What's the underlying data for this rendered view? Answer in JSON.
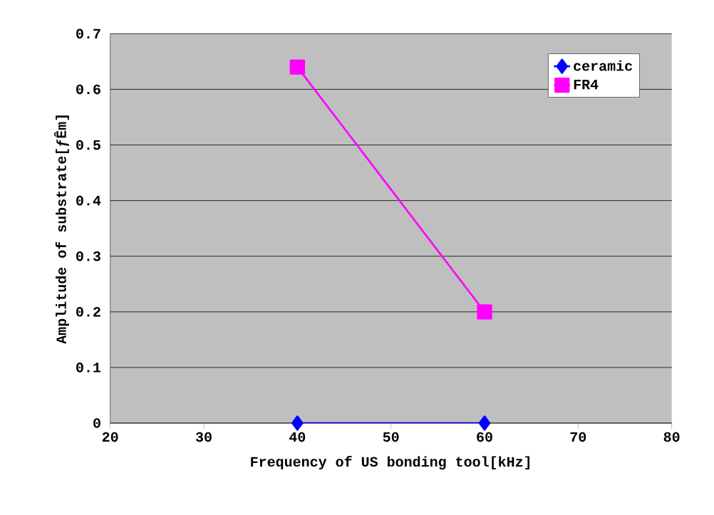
{
  "chart_data": {
    "type": "line",
    "xlabel": "Frequency of US bonding tool[kHz]",
    "ylabel": "Amplitude of substrate[ƒÊm]",
    "x": [
      40,
      60
    ],
    "series": [
      {
        "name": "ceramic",
        "color": "#0000ff",
        "marker": "diamond",
        "values": [
          0,
          0
        ]
      },
      {
        "name": "FR4",
        "color": "#ff00ff",
        "marker": "square",
        "values": [
          0.64,
          0.2
        ]
      }
    ],
    "xlim": [
      20,
      80
    ],
    "xticks": [
      20,
      30,
      40,
      50,
      60,
      70,
      80
    ],
    "ylim": [
      0,
      0.7
    ],
    "yticks": [
      0,
      0.1,
      0.2,
      0.3,
      0.4,
      0.5,
      0.6,
      0.7
    ],
    "grid": "y",
    "legend": "top right",
    "line_style": "solid"
  }
}
